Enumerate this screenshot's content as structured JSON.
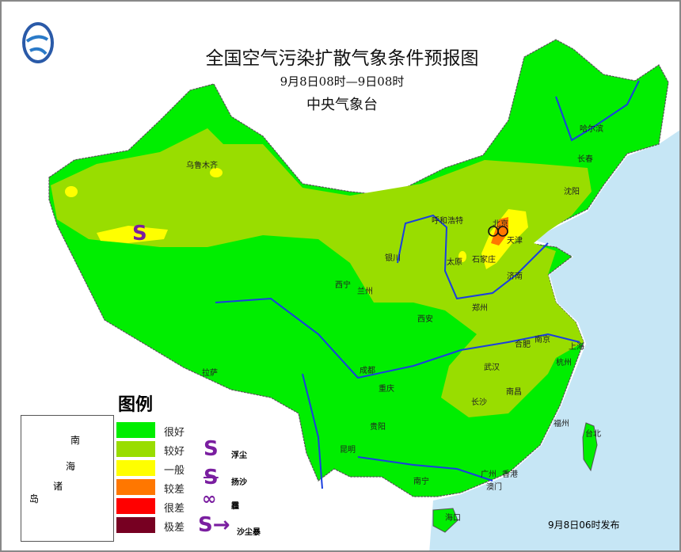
{
  "header": {
    "title": "全国空气污染扩散气象条件预报图",
    "period": "9月8日08时—9日08时",
    "issuer": "中央气象台",
    "logo": "cma-logo"
  },
  "legend": {
    "title": "图例",
    "levels": [
      {
        "label": "很好",
        "color": "#00ee00"
      },
      {
        "label": "较好",
        "color": "#99dd00"
      },
      {
        "label": "一般",
        "color": "#ffff00"
      },
      {
        "label": "较差",
        "color": "#ff7700"
      },
      {
        "label": "很差",
        "color": "#ff0000"
      },
      {
        "label": "极差",
        "color": "#770022"
      }
    ],
    "symbols": [
      {
        "icon": "floating-dust-icon",
        "label": "浮尘"
      },
      {
        "icon": "blowing-sand-icon",
        "label": "扬沙"
      },
      {
        "icon": "haze-icon",
        "label": "霾"
      },
      {
        "icon": "sandstorm-icon",
        "label": "沙尘暴"
      }
    ]
  },
  "cities": [
    "乌鲁木齐",
    "哈尔滨",
    "长春",
    "沈阳",
    "呼和浩特",
    "北京",
    "天津",
    "石家庄",
    "太原",
    "济南",
    "银川",
    "西宁",
    "兰州",
    "郑州",
    "西安",
    "合肥",
    "南京",
    "上海",
    "武汉",
    "杭州",
    "拉萨",
    "成都",
    "重庆",
    "长沙",
    "南昌",
    "贵阳",
    "福州",
    "台北",
    "昆明",
    "南宁",
    "广州",
    "香港",
    "澳门",
    "海口"
  ],
  "inset": {
    "labels": [
      "南",
      "海",
      "诸",
      "岛"
    ]
  },
  "footer": {
    "issued": "9月8日06时发布"
  },
  "colors": {
    "ocean": "#c6e6f5",
    "river": "#1a3ee0"
  }
}
